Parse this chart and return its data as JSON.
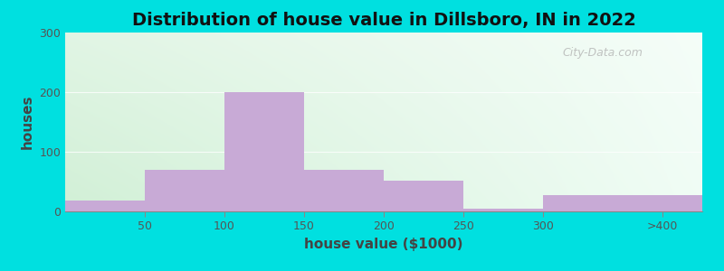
{
  "title": "Distribution of house value in Dillsboro, IN in 2022",
  "xlabel": "house value ($1000)",
  "ylabel": "houses",
  "bar_values": [
    18,
    70,
    200,
    70,
    52,
    4,
    28,
    28
  ],
  "bar_color": "#c8aad6",
  "tick_labels_x": [
    "50",
    "100",
    "150",
    "200",
    "250",
    "300",
    ">400"
  ],
  "ylim": [
    0,
    300
  ],
  "yticks": [
    0,
    100,
    200,
    300
  ],
  "background_outer": "#00e0e0",
  "title_fontsize": 14,
  "axis_label_fontsize": 11,
  "tick_fontsize": 9,
  "watermark_text": "City-Data.com"
}
